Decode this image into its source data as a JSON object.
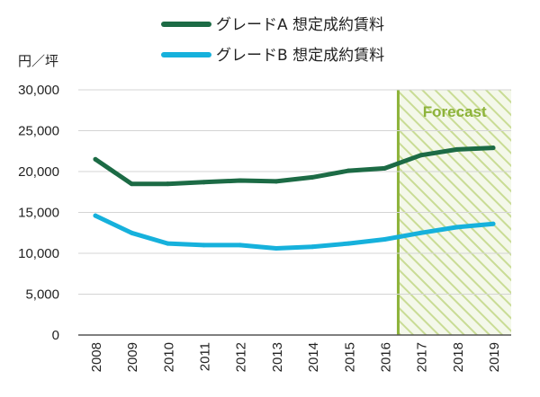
{
  "chart_data": {
    "type": "line",
    "ylabel": "円／坪",
    "ylim": [
      0,
      30000
    ],
    "yticks": [
      0,
      5000,
      10000,
      15000,
      20000,
      25000,
      30000
    ],
    "ytick_labels": [
      "0",
      "5,000",
      "10,000",
      "15,000",
      "20,000",
      "25,000",
      "30,000"
    ],
    "grid": true,
    "legend_position": "top-center",
    "categories": [
      "2008",
      "2009",
      "2010",
      "2011",
      "2012",
      "2013",
      "2014",
      "2015",
      "2016",
      "2017",
      "2018",
      "2019"
    ],
    "series": [
      {
        "name": "グレードA 想定成約賃料",
        "color": "#1c6b45",
        "values": [
          21500,
          18500,
          18500,
          18700,
          18900,
          18800,
          19300,
          20100,
          20400,
          22000,
          22700,
          22900
        ]
      },
      {
        "name": "グレードB 想定成約賃料",
        "color": "#16b1dc",
        "values": [
          14600,
          12500,
          11200,
          11000,
          11000,
          10600,
          10800,
          11200,
          11700,
          12500,
          13200,
          13600
        ]
      }
    ],
    "forecast": {
      "label": "Forecast",
      "start": "2016",
      "end": "2019",
      "color": "#8db33a"
    }
  }
}
